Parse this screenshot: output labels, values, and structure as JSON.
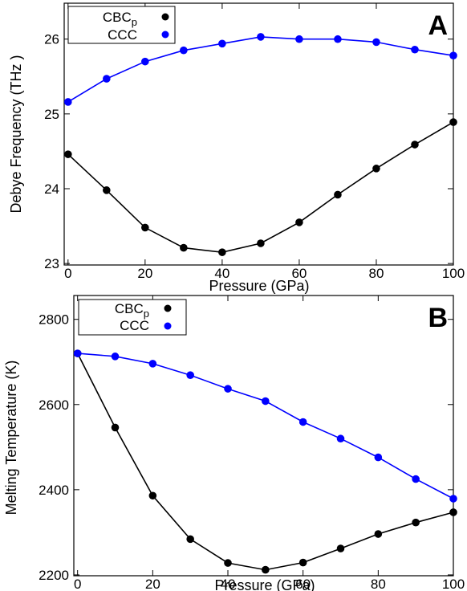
{
  "chart_data": [
    {
      "type": "line",
      "panel_letter": "A",
      "xlabel": "Pressure (GPa)",
      "ylabel": "Debye Frequency (THz )",
      "xlim": [
        -1,
        100
      ],
      "ylim": [
        22.98,
        26.48
      ],
      "x_ticks": [
        0,
        20,
        40,
        60,
        80,
        100
      ],
      "y_ticks": [
        23,
        24,
        25,
        26
      ],
      "grid": false,
      "legend_position": "top-left",
      "x": [
        0,
        10,
        20,
        30,
        40,
        50,
        60,
        70,
        80,
        90,
        100
      ],
      "series": [
        {
          "name": "CBC",
          "name_sub": "p",
          "color": "#000000",
          "values": [
            24.46,
            23.98,
            23.48,
            23.21,
            23.15,
            23.27,
            23.55,
            23.92,
            24.27,
            24.59,
            24.89
          ]
        },
        {
          "name": "CCC",
          "color": "#0000ff",
          "values": [
            25.16,
            25.47,
            25.7,
            25.85,
            25.94,
            26.03,
            26.0,
            26.0,
            25.96,
            25.86,
            25.78
          ]
        }
      ]
    },
    {
      "type": "line",
      "panel_letter": "B",
      "xlabel": "Pressure (GPa)",
      "ylabel": "Melting Temperature (K)",
      "xlim": [
        -1,
        100
      ],
      "ylim": [
        2198,
        2856
      ],
      "x_ticks": [
        0,
        20,
        40,
        60,
        80,
        100
      ],
      "y_ticks": [
        2200,
        2400,
        2600,
        2800
      ],
      "grid": false,
      "legend_position": "top-left",
      "x": [
        0,
        10,
        20,
        30,
        40,
        50,
        60,
        70,
        80,
        90,
        100
      ],
      "series": [
        {
          "name": "CBC",
          "name_sub": "p",
          "color": "#000000",
          "values": [
            2720,
            2546,
            2386,
            2284,
            2228,
            2212,
            2229,
            2262,
            2296,
            2323,
            2347
          ]
        },
        {
          "name": "CCC",
          "color": "#0000ff",
          "values": [
            2720,
            2713,
            2696,
            2669,
            2637,
            2608,
            2559,
            2520,
            2476,
            2425,
            2379
          ]
        }
      ]
    }
  ]
}
